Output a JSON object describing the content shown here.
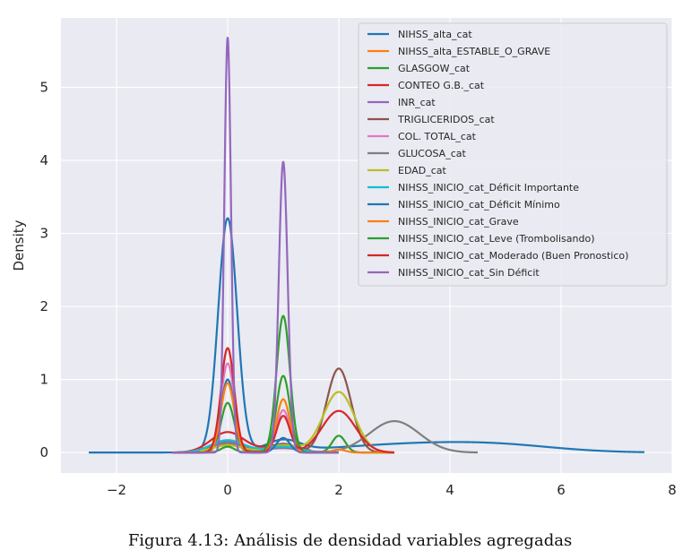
{
  "caption": "Figura 4.13: Análisis de densidad variables agregadas",
  "chart_data": {
    "type": "line",
    "xlabel": "",
    "ylabel": "Density",
    "xlim": [
      -3.0,
      8.0
    ],
    "ylim": [
      -0.28,
      5.95
    ],
    "xticks": [
      -2,
      0,
      2,
      4,
      6,
      8
    ],
    "yticks": [
      0,
      1,
      2,
      3,
      4,
      5
    ],
    "grid": true,
    "background": "#eaeaf2",
    "legend_position": "top-right",
    "series": [
      {
        "name": "NIHSS_alta_cat",
        "color": "#1f77b4",
        "xrange": [
          -2.5,
          7.5
        ],
        "components": [
          [
            0,
            0.17,
            3.2
          ],
          [
            1,
            0.3,
            0.15
          ],
          [
            3.5,
            1.5,
            0.12
          ],
          [
            5.0,
            1.0,
            0.05
          ]
        ]
      },
      {
        "name": "NIHSS_alta_ESTABLE_O_GRAVE",
        "color": "#ff7f0e",
        "xrange": [
          -1.0,
          1.5
        ],
        "components": [
          [
            0,
            0.3,
            0.1
          ],
          [
            1,
            0.3,
            0.07
          ]
        ]
      },
      {
        "name": "GLASGOW_cat",
        "color": "#2ca02c",
        "xrange": [
          -1.0,
          3.0
        ],
        "components": [
          [
            0,
            0.12,
            0.68
          ],
          [
            1,
            0.12,
            1.05
          ],
          [
            2,
            0.12,
            0.23
          ]
        ]
      },
      {
        "name": "CONTEO G.B._cat",
        "color": "#d62728",
        "xrange": [
          -1.0,
          1.5
        ],
        "components": [
          [
            0,
            0.3,
            0.28
          ],
          [
            1,
            0.3,
            0.11
          ]
        ]
      },
      {
        "name": "INR_cat",
        "color": "#9467bd",
        "xrange": [
          -1.0,
          1.5
        ],
        "components": [
          [
            0,
            0.3,
            0.15
          ],
          [
            1,
            0.3,
            0.06
          ]
        ]
      },
      {
        "name": "TRIGLICERIDOS_cat",
        "color": "#8c564b",
        "xrange": [
          -0.5,
          3.0
        ],
        "components": [
          [
            0,
            0.22,
            0.13
          ],
          [
            1,
            0.22,
            0.12
          ],
          [
            2,
            0.22,
            1.15
          ]
        ]
      },
      {
        "name": "COL. TOTAL_cat",
        "color": "#e377c2",
        "xrange": [
          -1.0,
          2.0
        ],
        "components": [
          [
            0,
            0.12,
            1.22
          ],
          [
            1,
            0.12,
            0.58
          ]
        ]
      },
      {
        "name": "GLUCOSA_cat",
        "color": "#7f7f7f",
        "xrange": [
          -1.0,
          4.5
        ],
        "components": [
          [
            0,
            0.3,
            0.13
          ],
          [
            1,
            0.3,
            0.07
          ],
          [
            3,
            0.45,
            0.43
          ]
        ]
      },
      {
        "name": "EDAD_cat",
        "color": "#bcbd22",
        "xrange": [
          -0.5,
          3.0
        ],
        "components": [
          [
            0,
            0.28,
            0.1
          ],
          [
            1,
            0.28,
            0.1
          ],
          [
            2,
            0.28,
            0.83
          ]
        ]
      },
      {
        "name": "NIHSS_INICIO_cat_Déficit Importante",
        "color": "#17becf",
        "xrange": [
          -1.0,
          1.5
        ],
        "components": [
          [
            0,
            0.3,
            0.17
          ],
          [
            1,
            0.3,
            0.08
          ]
        ]
      },
      {
        "name": "NIHSS_INICIO_cat_Déficit Mínimo",
        "color": "#1f77b4",
        "xrange": [
          -1.0,
          2.0
        ],
        "components": [
          [
            0,
            0.12,
            1.0
          ],
          [
            1,
            0.12,
            0.2
          ]
        ]
      },
      {
        "name": "NIHSS_INICIO_cat_Grave",
        "color": "#ff7f0e",
        "xrange": [
          -1.0,
          3.0
        ],
        "components": [
          [
            0,
            0.12,
            0.95
          ],
          [
            1,
            0.12,
            0.73
          ],
          [
            2,
            0.12,
            0.04
          ]
        ]
      },
      {
        "name": "NIHSS_INICIO_cat_Leve (Trombolisando)",
        "color": "#2ca02c",
        "xrange": [
          -1.0,
          2.0
        ],
        "components": [
          [
            0,
            0.12,
            0.08
          ],
          [
            1,
            0.12,
            1.87
          ]
        ]
      },
      {
        "name": "NIHSS_INICIO_cat_Moderado (Buen Pronostico)",
        "color": "#d62728",
        "xrange": [
          -1.0,
          3.0
        ],
        "components": [
          [
            0,
            0.12,
            1.43
          ],
          [
            1,
            0.12,
            0.5
          ],
          [
            2,
            0.3,
            0.57
          ]
        ]
      },
      {
        "name": "NIHSS_INICIO_cat_Sin Déficit",
        "color": "#9467bd",
        "xrange": [
          -1.0,
          2.0
        ],
        "components": [
          [
            0,
            0.06,
            5.68
          ],
          [
            1,
            0.08,
            3.98
          ]
        ]
      }
    ]
  }
}
